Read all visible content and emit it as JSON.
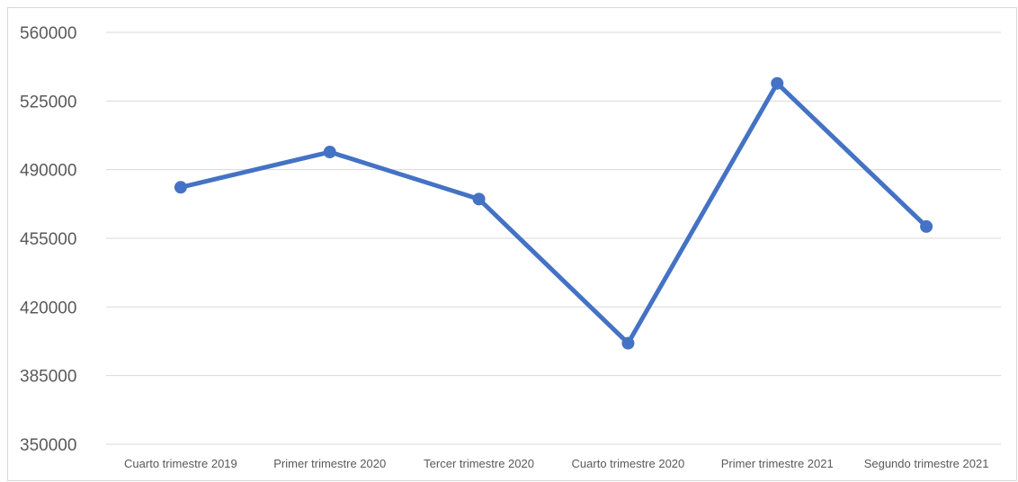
{
  "chart_data": {
    "type": "line",
    "title": "",
    "xlabel": "",
    "ylabel": "",
    "categories": [
      "Cuarto trimestre 2019",
      "Primer trimestre 2020",
      "Tercer trimestre 2020",
      "Cuarto trimestre 2020",
      "Primer trimestre 2021",
      "Segundo trimestre 2021"
    ],
    "series": [
      {
        "values": [
          481000,
          499000,
          475000,
          401500,
          534000,
          461000
        ],
        "color": "#4472c4"
      }
    ],
    "ylim": [
      350000,
      560000
    ],
    "yticks": [
      350000,
      385000,
      420000,
      455000,
      490000,
      525000,
      560000
    ],
    "grid": true,
    "legend": "none"
  }
}
